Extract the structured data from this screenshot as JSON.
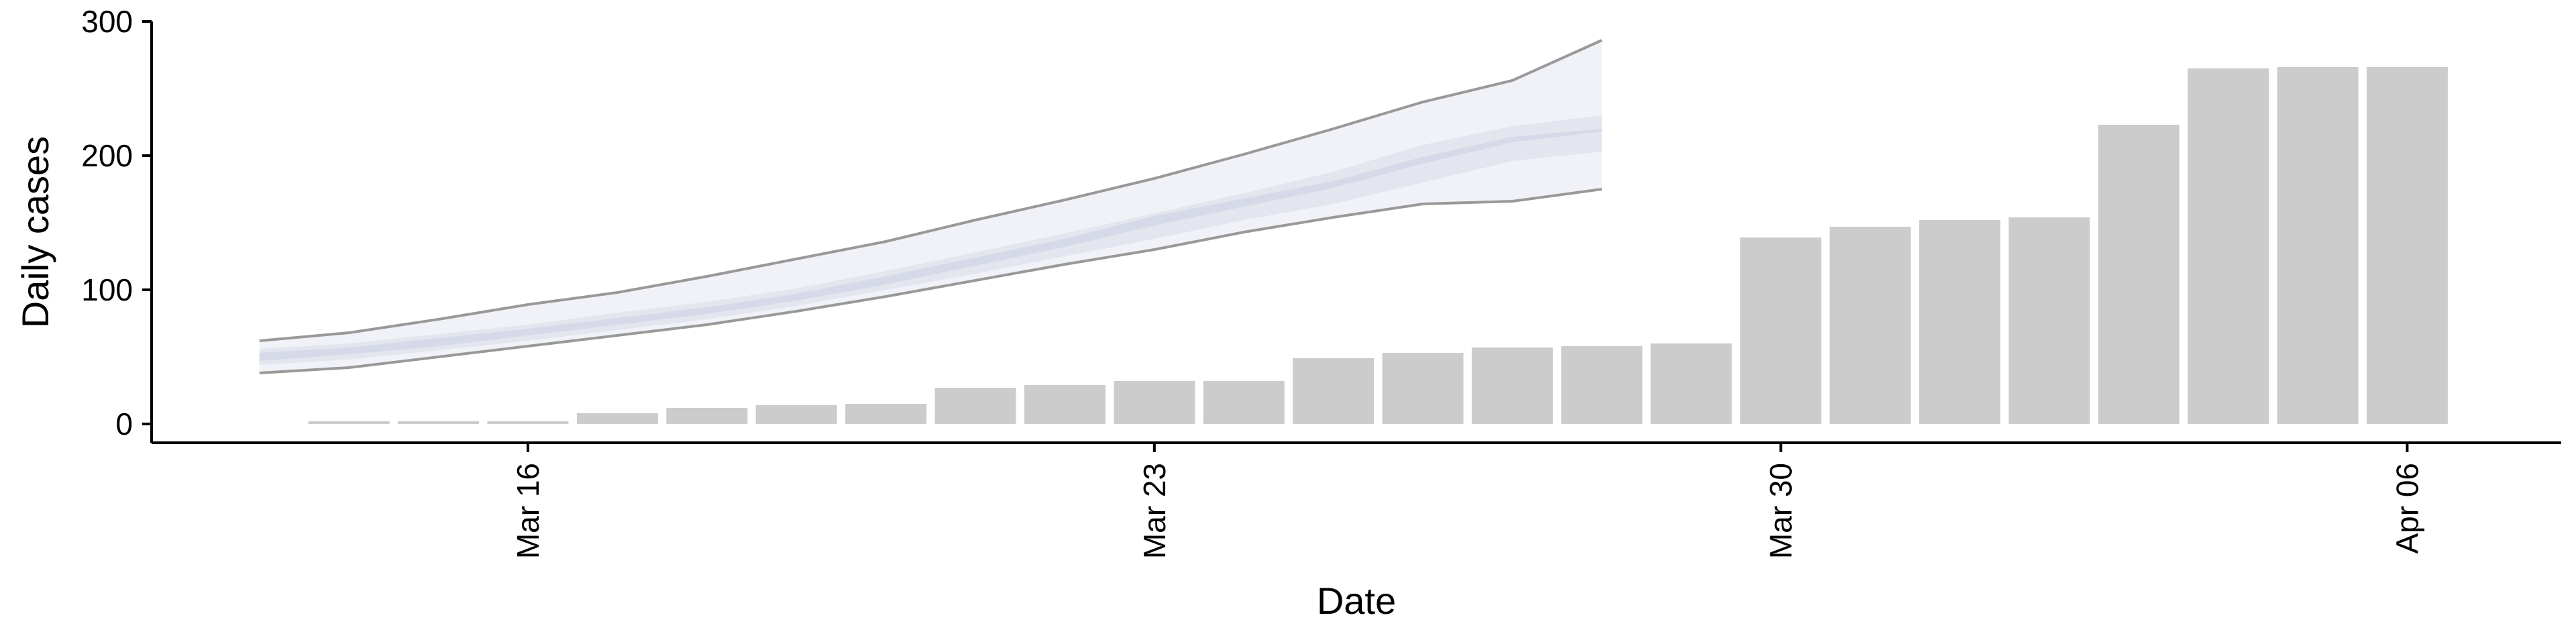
{
  "chart_data": {
    "type": "bar",
    "xlabel": "Date",
    "ylabel": "Daily cases",
    "ylim": [
      0,
      300
    ],
    "y_ticks": [
      0,
      100,
      200,
      300
    ],
    "y_tick_labels": [
      "0",
      "100",
      "200",
      "300"
    ],
    "x_ticks": [
      "2020-03-16",
      "2020-03-23",
      "2020-03-30",
      "2020-04-06"
    ],
    "x_tick_labels": [
      "Mar 16",
      "Mar 23",
      "Mar 30",
      "Apr 06"
    ],
    "grid": false,
    "legend": "none",
    "observed_cases": {
      "dates": [
        "2020-03-14",
        "2020-03-15",
        "2020-03-16",
        "2020-03-17",
        "2020-03-18",
        "2020-03-19",
        "2020-03-20",
        "2020-03-21",
        "2020-03-22",
        "2020-03-23",
        "2020-03-24",
        "2020-03-25",
        "2020-03-26",
        "2020-03-27",
        "2020-03-28",
        "2020-03-29",
        "2020-03-30",
        "2020-03-31",
        "2020-04-01",
        "2020-04-02",
        "2020-04-03",
        "2020-04-04",
        "2020-04-05",
        "2020-04-06"
      ],
      "values": [
        2,
        2,
        2,
        8,
        12,
        14,
        15,
        27,
        29,
        32,
        32,
        49,
        53,
        57,
        58,
        60,
        139,
        147,
        152,
        154,
        223,
        265,
        266,
        266
      ],
      "color": "#cccccc"
    },
    "estimate": {
      "dates": [
        "2020-03-13",
        "2020-03-14",
        "2020-03-15",
        "2020-03-16",
        "2020-03-17",
        "2020-03-18",
        "2020-03-19",
        "2020-03-20",
        "2020-03-21",
        "2020-03-22",
        "2020-03-23",
        "2020-03-24",
        "2020-03-25",
        "2020-03-26",
        "2020-03-27",
        "2020-03-28"
      ],
      "lower_90": [
        38,
        42,
        50,
        58,
        66,
        74,
        84,
        95,
        107,
        119,
        130,
        143,
        154,
        164,
        166,
        175
      ],
      "upper_90": [
        62,
        68,
        78,
        89,
        98,
        110,
        123,
        136,
        152,
        167,
        183,
        201,
        220,
        240,
        256,
        286
      ],
      "lower_50": [
        44,
        48,
        55,
        62,
        70,
        78,
        88,
        100,
        112,
        125,
        138,
        152,
        164,
        180,
        196,
        203
      ],
      "upper_50": [
        56,
        60,
        67,
        74,
        83,
        91,
        101,
        114,
        128,
        142,
        157,
        172,
        188,
        208,
        222,
        230
      ],
      "lower_20": [
        47,
        52,
        58,
        66,
        74,
        82,
        92,
        104,
        118,
        132,
        148,
        162,
        176,
        194,
        210,
        218
      ],
      "upper_20": [
        53,
        57,
        64,
        71,
        79,
        87,
        97,
        110,
        124,
        138,
        155,
        168,
        181,
        199,
        214,
        220
      ],
      "band_color": "#c9cde0",
      "line_color": "#999999"
    }
  }
}
